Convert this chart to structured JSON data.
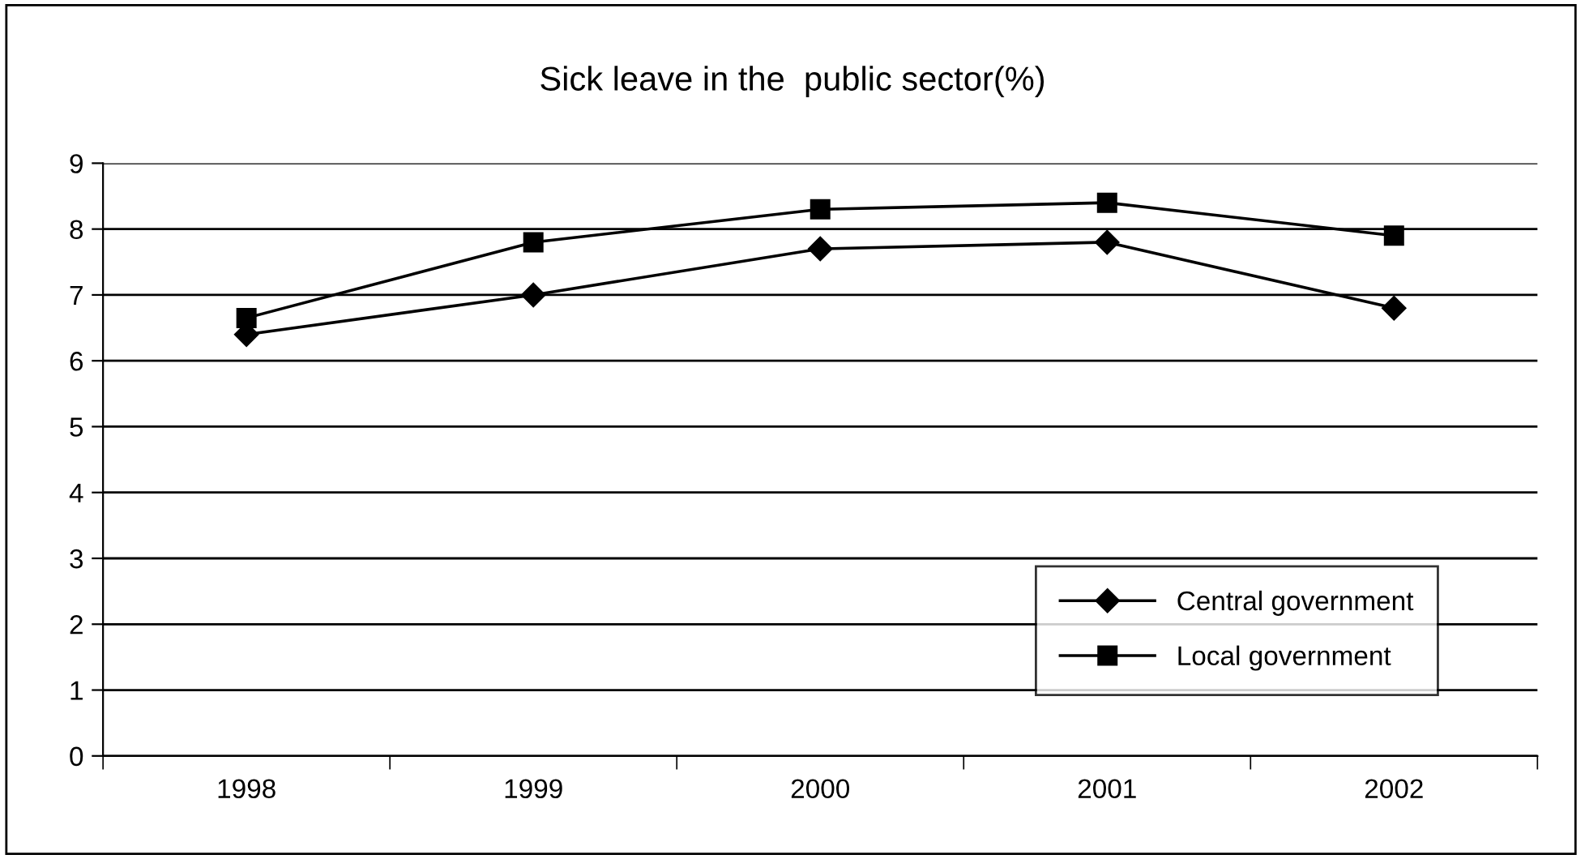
{
  "chart_data": {
    "type": "line",
    "title": "Sick leave in the  public sector(%)",
    "categories": [
      "1998",
      "1999",
      "2000",
      "2001",
      "2002"
    ],
    "series": [
      {
        "name": "Central government",
        "color": "#000000",
        "marker": "diamond",
        "values": [
          6.4,
          7.0,
          7.7,
          7.8,
          6.8
        ]
      },
      {
        "name": "Local government",
        "color": "#000000",
        "marker": "square",
        "values": [
          6.65,
          7.8,
          8.3,
          8.4,
          7.9
        ]
      }
    ],
    "ylim": [
      0,
      9
    ],
    "yticks": [
      0,
      1,
      2,
      3,
      4,
      5,
      6,
      7,
      8,
      9
    ],
    "grid": "y",
    "legend": "bottom right"
  }
}
